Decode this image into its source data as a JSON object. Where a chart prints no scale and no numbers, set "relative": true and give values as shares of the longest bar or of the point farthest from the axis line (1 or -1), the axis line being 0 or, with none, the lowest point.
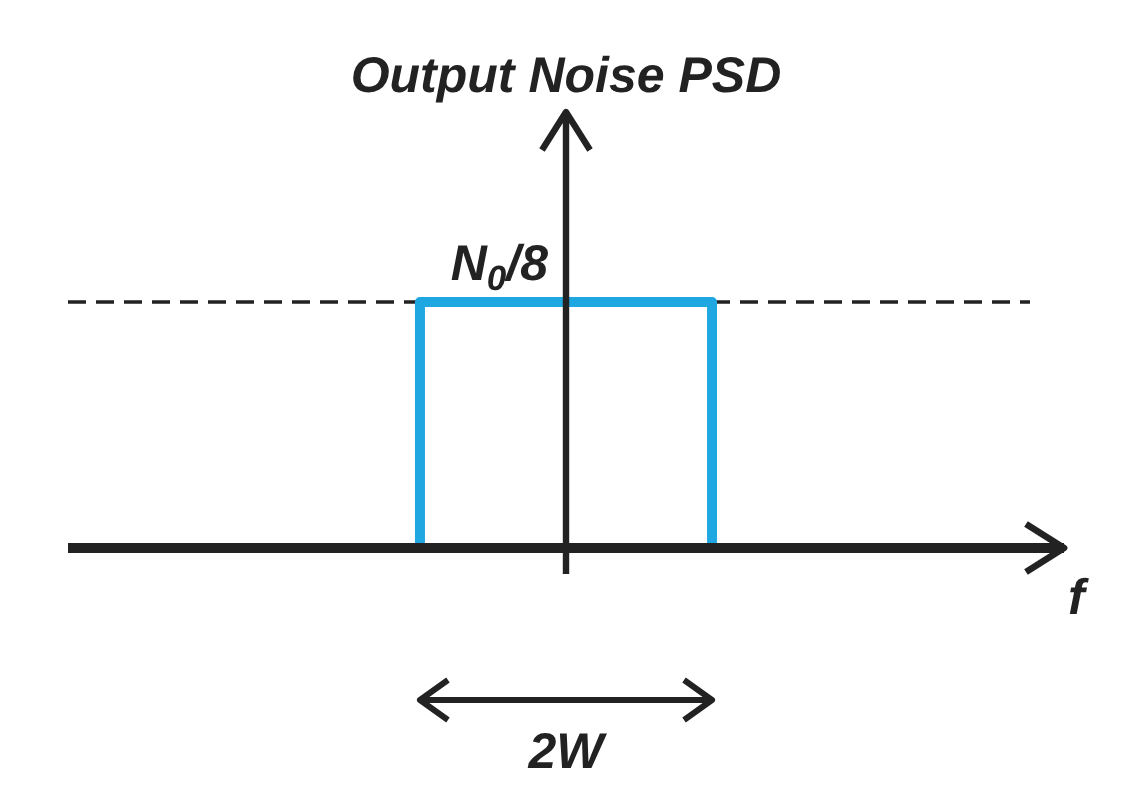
{
  "chart_data": {
    "type": "step",
    "title": "Output Noise PSD",
    "xlabel": "f",
    "categories": [
      null,
      null,
      null
    ],
    "values": [
      0,
      1,
      0
    ],
    "color": "#1fa7e1",
    "relative": true,
    "ref_lines": [
      {
        "axis": "y",
        "value": 1,
        "label": "N$_{0}$/8",
        "color": "#222222",
        "line_style": "dashed"
      }
    ],
    "annotations": [
      "2W"
    ]
  }
}
